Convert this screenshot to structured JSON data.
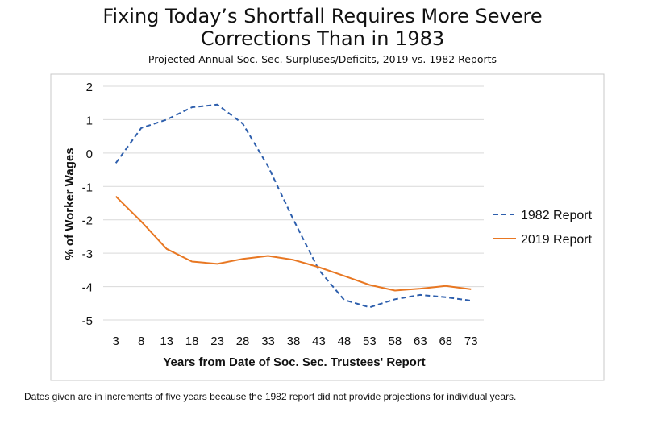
{
  "title_line1": "Fixing Today’s Shortfall Requires More Severe",
  "title_line2": "Corrections Than in 1983",
  "subtitle": "Projected Annual Soc. Sec. Surpluses/Deficits, 2019 vs. 1982 Reports",
  "footnote": "Dates given are in increments of five years because the 1982 report did not provide projections for individual years.",
  "chart_data": {
    "type": "line",
    "title": "Fixing Today’s Shortfall Requires More Severe Corrections Than in 1983",
    "subtitle": "Projected Annual Soc. Sec. Surpluses/Deficits, 2019 vs. 1982 Reports",
    "xlabel": "Years from Date of Soc. Sec. Trustees' Report",
    "ylabel": "% of Worker Wages",
    "x": [
      3,
      8,
      13,
      18,
      23,
      28,
      33,
      38,
      43,
      48,
      53,
      58,
      63,
      68,
      73
    ],
    "ylim": [
      -5,
      2
    ],
    "yticks": [
      2,
      1,
      0,
      -1,
      -2,
      -3,
      -4,
      -5
    ],
    "grid": true,
    "legend_position": "right",
    "series": [
      {
        "name": "1982 Report",
        "color": "#2E5FAD",
        "style": "dashed",
        "values": [
          -0.3,
          0.75,
          1.0,
          1.37,
          1.45,
          0.88,
          -0.4,
          -2.0,
          -3.5,
          -4.4,
          -4.62,
          -4.38,
          -4.25,
          -4.32,
          -4.42
        ]
      },
      {
        "name": "2019 Report",
        "color": "#E87722",
        "style": "solid",
        "values": [
          -1.3,
          -2.05,
          -2.87,
          -3.25,
          -3.32,
          -3.17,
          -3.08,
          -3.2,
          -3.42,
          -3.68,
          -3.95,
          -4.12,
          -4.06,
          -3.98,
          -4.08
        ]
      }
    ]
  }
}
